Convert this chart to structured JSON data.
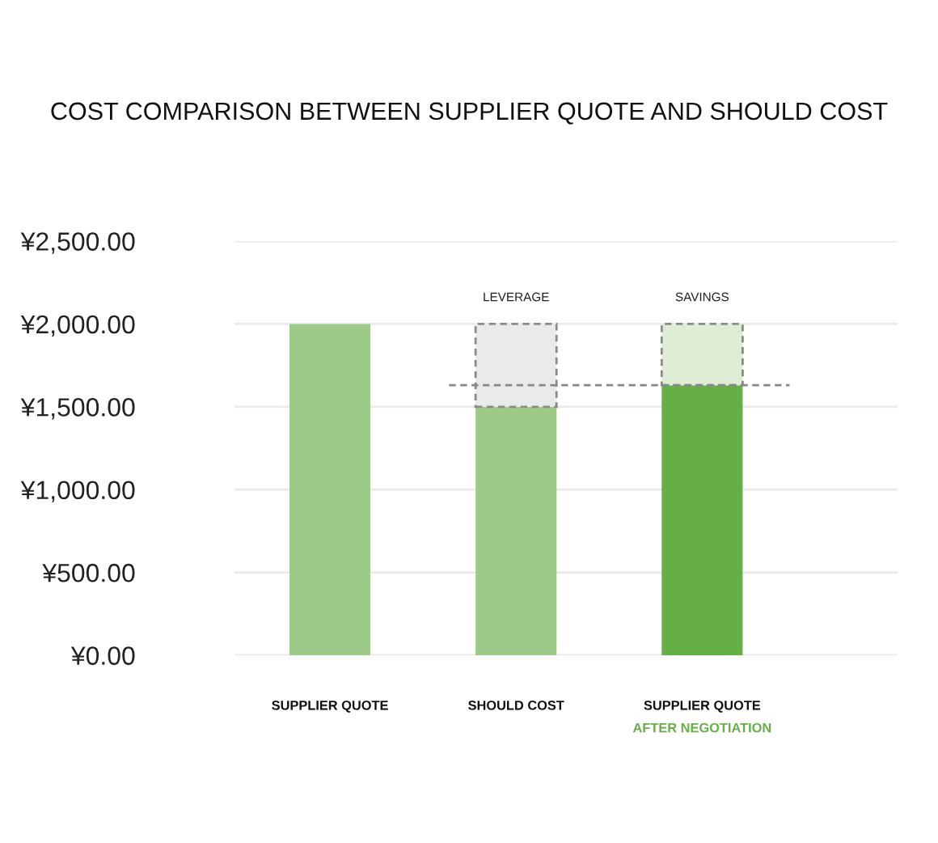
{
  "chart_data": {
    "type": "bar",
    "title": "COST COMPARISON BETWEEN SUPPLIER QUOTE AND SHOULD COST",
    "categories": [
      "SUPPLIER QUOTE",
      "SHOULD COST",
      "SUPPLIER QUOTE\nAFTER NEGOTIATION"
    ],
    "stacked": true,
    "series": [
      {
        "colors": [
          "#9dca86",
          "#9dca86",
          "#66ae46"
        ],
        "values": [
          2000,
          1500,
          1630
        ]
      },
      {
        "colors": [
          "#e9eaec",
          "#e9eaec",
          "#dfecd6"
        ],
        "line_style": "dashed",
        "values": [
          null,
          500,
          370
        ]
      }
    ],
    "ylim": [
      0,
      2500
    ],
    "yticks": [
      {
        "value": 0,
        "label": "¥0.00"
      },
      {
        "value": 500,
        "label": "¥500.00"
      },
      {
        "value": 1000,
        "label": "¥1,000.00"
      },
      {
        "value": 1500,
        "label": "¥1,500.00"
      },
      {
        "value": 2000,
        "label": "¥2,000.00"
      },
      {
        "value": 2500,
        "label": "¥2,500.00"
      }
    ],
    "grid": "y",
    "ref_lines": [
      {
        "axis": "y",
        "value": 1630,
        "color": "#888888",
        "line_style": "dashed"
      }
    ],
    "annotations": [
      {
        "text": "LEVERAGE",
        "x": "SHOULD COST",
        "y": 2000
      },
      {
        "text": "SAVINGS",
        "x": "SUPPLIER QUOTE\nAFTER NEGOTIATION",
        "y": 2000
      }
    ]
  }
}
